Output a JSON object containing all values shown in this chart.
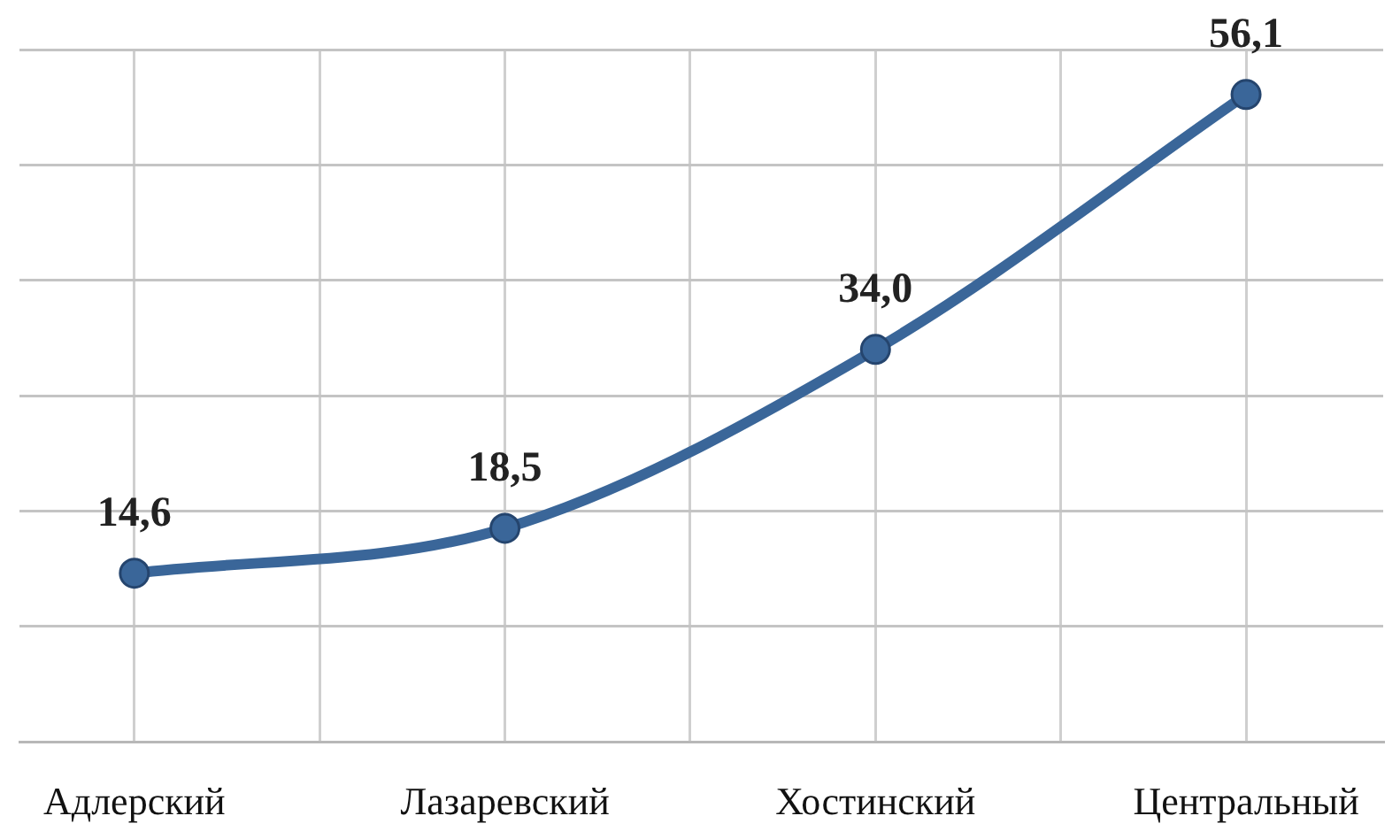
{
  "chart_data": {
    "type": "line",
    "categories": [
      "Адлерский",
      "Лазаревский",
      "Хостинский",
      "Центральный"
    ],
    "values": [
      14.6,
      18.5,
      34.0,
      56.1
    ],
    "color": "#3a6699",
    "value_labels": [
      "14,6",
      "18,5",
      "34,0",
      "56,1"
    ],
    "ylim": [
      0,
      60
    ],
    "yticks": [
      {
        "value": 0,
        "label": null
      },
      {
        "value": 10,
        "label": null
      },
      {
        "value": 20,
        "label": null
      },
      {
        "value": 30,
        "label": null
      },
      {
        "value": 40,
        "label": null
      },
      {
        "value": 50,
        "label": null
      },
      {
        "value": 60,
        "label": null
      }
    ],
    "grid": true,
    "tick_labels": "x",
    "marker": "circle",
    "line_style": "solid"
  }
}
